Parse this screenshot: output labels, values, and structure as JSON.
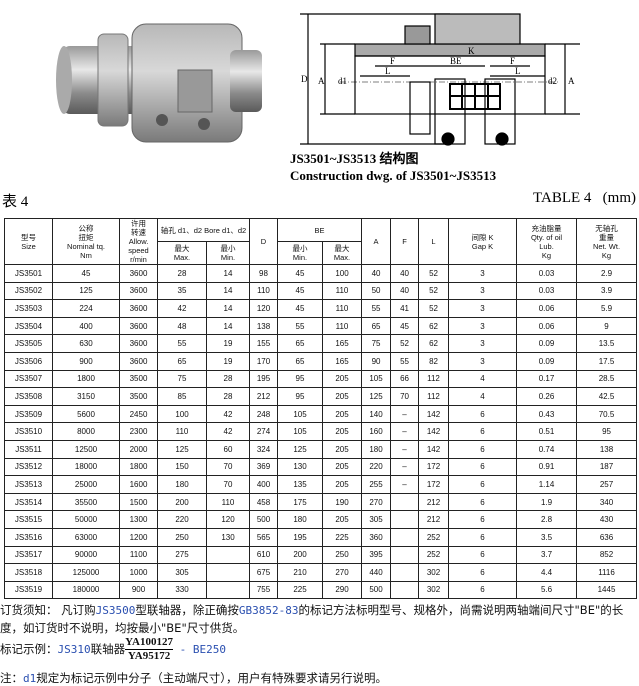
{
  "figure": {
    "photo_alt": "coupling-photo",
    "caption_cn": "JS3501~JS3513 结构图",
    "caption_en": "Construction dwg. of JS3501~JS3513",
    "drawing_labels": [
      "D",
      "A",
      "d1",
      "F",
      "L",
      "BE",
      "K",
      "F",
      "L",
      "d2",
      "A"
    ]
  },
  "table_title_cn": "表 4",
  "table_title_en": "TABLE 4   (mm)",
  "table": {
    "headers": {
      "size": [
        "型号",
        "Size"
      ],
      "torque": [
        "公称",
        "扭矩",
        "Nominal tq.",
        "Nm"
      ],
      "speed": [
        "许用",
        "转速",
        "Allow.",
        "speed",
        "r/min"
      ],
      "bore": "轴孔 d1、d2 Bore d1、d2",
      "bore_max": [
        "最大",
        "Max."
      ],
      "bore_min": [
        "最小",
        "Min."
      ],
      "D": "D",
      "BE": "BE",
      "be_min": [
        "最小",
        "Min."
      ],
      "be_max": [
        "最大",
        "Max."
      ],
      "A": "A",
      "F": "F",
      "L": "L",
      "gap": [
        "间隙 K",
        "Gap K"
      ],
      "oil": [
        "充油脂量",
        "Qty. of oil",
        "Lub.",
        "Kg"
      ],
      "weight": [
        "无轴孔",
        "重量",
        "Net. Wt.",
        "Kg"
      ]
    },
    "rows": [
      [
        "JS3501",
        "45",
        "3600",
        "28",
        "14",
        "98",
        "45",
        "100",
        "40",
        "40",
        "52",
        "3",
        "0.03",
        "2.9"
      ],
      [
        "JS3502",
        "125",
        "3600",
        "35",
        "14",
        "110",
        "45",
        "110",
        "50",
        "40",
        "52",
        "3",
        "0.03",
        "3.9"
      ],
      [
        "JS3503",
        "224",
        "3600",
        "42",
        "14",
        "120",
        "45",
        "110",
        "55",
        "41",
        "52",
        "3",
        "0.06",
        "5.9"
      ],
      [
        "JS3504",
        "400",
        "3600",
        "48",
        "14",
        "138",
        "55",
        "110",
        "65",
        "45",
        "62",
        "3",
        "0.06",
        "9"
      ],
      [
        "JS3505",
        "630",
        "3600",
        "55",
        "19",
        "155",
        "65",
        "165",
        "75",
        "52",
        "62",
        "3",
        "0.09",
        "13.5"
      ],
      [
        "JS3506",
        "900",
        "3600",
        "65",
        "19",
        "170",
        "65",
        "165",
        "90",
        "55",
        "82",
        "3",
        "0.09",
        "17.5"
      ],
      [
        "JS3507",
        "1800",
        "3500",
        "75",
        "28",
        "195",
        "95",
        "205",
        "105",
        "66",
        "112",
        "4",
        "0.17",
        "28.5"
      ],
      [
        "JS3508",
        "3150",
        "3500",
        "85",
        "28",
        "212",
        "95",
        "205",
        "125",
        "70",
        "112",
        "4",
        "0.26",
        "42.5"
      ],
      [
        "JS3509",
        "5600",
        "2450",
        "100",
        "42",
        "248",
        "105",
        "205",
        "140",
        "–",
        "142",
        "6",
        "0.43",
        "70.5"
      ],
      [
        "JS3510",
        "8000",
        "2300",
        "110",
        "42",
        "274",
        "105",
        "205",
        "160",
        "–",
        "142",
        "6",
        "0.51",
        "95"
      ],
      [
        "JS3511",
        "12500",
        "2000",
        "125",
        "60",
        "324",
        "125",
        "205",
        "180",
        "–",
        "142",
        "6",
        "0.74",
        "138"
      ],
      [
        "JS3512",
        "18000",
        "1800",
        "150",
        "70",
        "369",
        "130",
        "205",
        "220",
        "–",
        "172",
        "6",
        "0.91",
        "187"
      ],
      [
        "JS3513",
        "25000",
        "1600",
        "180",
        "70",
        "400",
        "135",
        "205",
        "255",
        "–",
        "172",
        "6",
        "1.14",
        "257"
      ],
      [
        "JS3514",
        "35500",
        "1500",
        "200",
        "110",
        "458",
        "175",
        "190",
        "270",
        "",
        "212",
        "6",
        "1.9",
        "340"
      ],
      [
        "JS3515",
        "50000",
        "1300",
        "220",
        "120",
        "500",
        "180",
        "205",
        "305",
        "",
        "212",
        "6",
        "2.8",
        "430"
      ],
      [
        "JS3516",
        "63000",
        "1200",
        "250",
        "130",
        "565",
        "195",
        "225",
        "360",
        "",
        "252",
        "6",
        "3.5",
        "636"
      ],
      [
        "JS3517",
        "90000",
        "1100",
        "275",
        "",
        "610",
        "200",
        "250",
        "395",
        "",
        "252",
        "6",
        "3.7",
        "852"
      ],
      [
        "JS3518",
        "125000",
        "1000",
        "305",
        "",
        "675",
        "210",
        "270",
        "440",
        "",
        "302",
        "6",
        "4.4",
        "1116"
      ],
      [
        "JS3519",
        "180000",
        "900",
        "330",
        "",
        "755",
        "225",
        "290",
        "500",
        "",
        "302",
        "6",
        "5.6",
        "1445"
      ]
    ]
  },
  "notes": {
    "order_label": "订货须知：",
    "order_p1": " 凡订购",
    "order_model": "JS3500",
    "order_p2": "型联轴器，除正确按",
    "order_std": "GB3852-83",
    "order_p3": "的标记方法标明型号、规格外，尚需说明两轴端间尺寸\"BE\"的长",
    "order_line2": "度，如订货时不说明，均按最小\"BE\"尺寸供货。",
    "example_label": "标记示例：",
    "example_model": "JS310",
    "example_word": "联轴器",
    "example_num": "YA100127",
    "example_den": "YA95172",
    "example_be": " - BE250",
    "note_label": "注：",
    "note_d1": "d1",
    "note_text": "规定为标记示例中分子（主动端尺寸），用户有特殊要求请另行说明。"
  }
}
